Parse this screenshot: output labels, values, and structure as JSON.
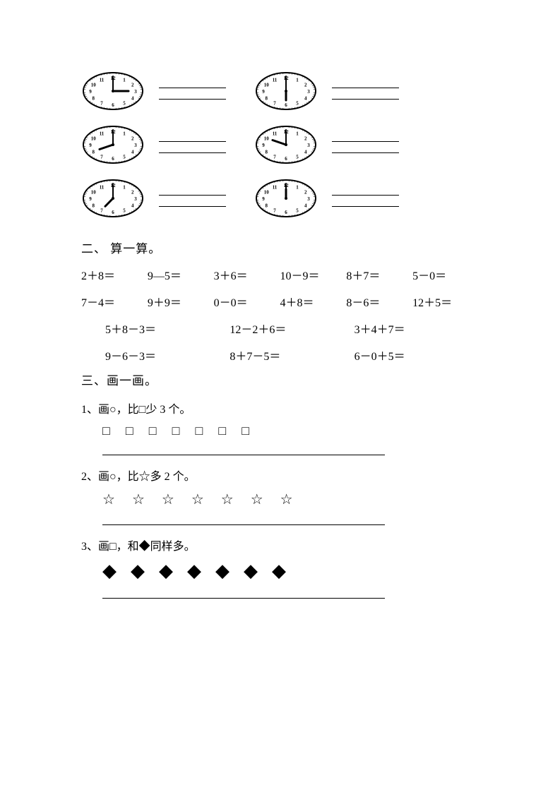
{
  "clocks": [
    {
      "hour": 3,
      "minute": 0
    },
    {
      "hour": 6,
      "minute": 0
    },
    {
      "hour": 8,
      "minute": 0
    },
    {
      "hour": 10,
      "minute": 0
    },
    {
      "hour": 7,
      "minute": 0
    },
    {
      "hour": 12,
      "minute": 0
    }
  ],
  "section2": {
    "title": "二、 算一算。",
    "rows6": [
      [
        "2＋8＝",
        "9—5＝",
        "3＋6＝",
        "10－9＝",
        "8＋7＝",
        "5－0＝"
      ],
      [
        "7－4＝",
        "9＋9＝",
        "0－0＝",
        "4＋8＝",
        "8－6＝",
        "12＋5＝"
      ]
    ],
    "rows3": [
      [
        "5＋8－3＝",
        "12－2＋6＝",
        "3＋4＋7＝"
      ],
      [
        "9－6－3＝",
        "8＋7－5＝",
        "6－0＋5＝"
      ]
    ]
  },
  "section3": {
    "title": "三、画一画。",
    "q1": {
      "text": "1、画○，比□少 3 个。",
      "shapes": [
        "□",
        "□",
        "□",
        "□",
        "□",
        "□",
        "□"
      ]
    },
    "q2": {
      "text": "2、画○，比☆多 2 个。",
      "shapes": [
        "☆",
        "☆",
        "☆",
        "☆",
        "☆",
        "☆",
        "☆"
      ]
    },
    "q3": {
      "text": "3、画□，和◆同样多。",
      "shapes": [
        "◆",
        "◆",
        "◆",
        "◆",
        "◆",
        "◆",
        "◆"
      ]
    }
  },
  "style": {
    "ink": "#000000",
    "bg": "#ffffff",
    "clock_face_fill": "#ffffff",
    "clock_stroke": "#000000"
  }
}
